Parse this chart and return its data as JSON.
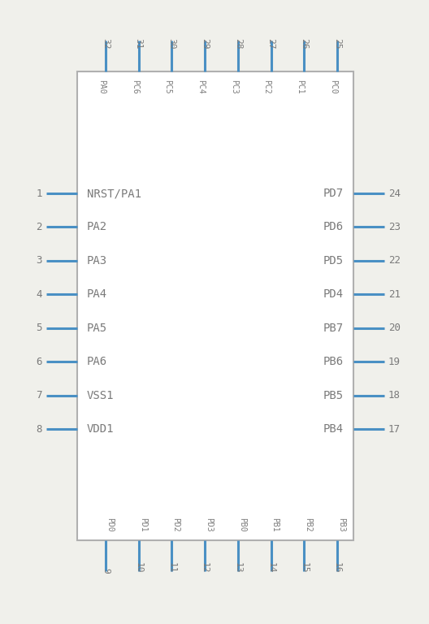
{
  "fig_width": 5.28,
  "fig_height": 7.68,
  "bg_color": "#f0f0eb",
  "box_color": "#b0b0b0",
  "pin_color": "#4a90c4",
  "text_color": "#7a7a7a",
  "top_pins": [
    {
      "num": "32",
      "label": "PA0"
    },
    {
      "num": "31",
      "label": "PC6"
    },
    {
      "num": "30",
      "label": "PC5"
    },
    {
      "num": "29",
      "label": "PC4"
    },
    {
      "num": "28",
      "label": "PC3"
    },
    {
      "num": "27",
      "label": "PC2"
    },
    {
      "num": "26",
      "label": "PC1"
    },
    {
      "num": "25",
      "label": "PC0"
    }
  ],
  "bottom_pins": [
    {
      "num": "9",
      "label": "PD0"
    },
    {
      "num": "10",
      "label": "PD1"
    },
    {
      "num": "11",
      "label": "PD2"
    },
    {
      "num": "12",
      "label": "PD3"
    },
    {
      "num": "13",
      "label": "PB0"
    },
    {
      "num": "14",
      "label": "PB1"
    },
    {
      "num": "15",
      "label": "PB2"
    },
    {
      "num": "16",
      "label": "PB3"
    }
  ],
  "left_pins": [
    {
      "num": "1",
      "label": "NRST/PA1"
    },
    {
      "num": "2",
      "label": "PA2"
    },
    {
      "num": "3",
      "label": "PA3"
    },
    {
      "num": "4",
      "label": "PA4"
    },
    {
      "num": "5",
      "label": "PA5"
    },
    {
      "num": "6",
      "label": "PA6"
    },
    {
      "num": "7",
      "label": "VSS1"
    },
    {
      "num": "8",
      "label": "VDD1"
    }
  ],
  "right_pins": [
    {
      "num": "24",
      "label": "PD7"
    },
    {
      "num": "23",
      "label": "PD6"
    },
    {
      "num": "22",
      "label": "PD5"
    },
    {
      "num": "21",
      "label": "PD4"
    },
    {
      "num": "20",
      "label": "PB7"
    },
    {
      "num": "19",
      "label": "PB6"
    },
    {
      "num": "18",
      "label": "PB5"
    },
    {
      "num": "17",
      "label": "PB4"
    }
  ]
}
